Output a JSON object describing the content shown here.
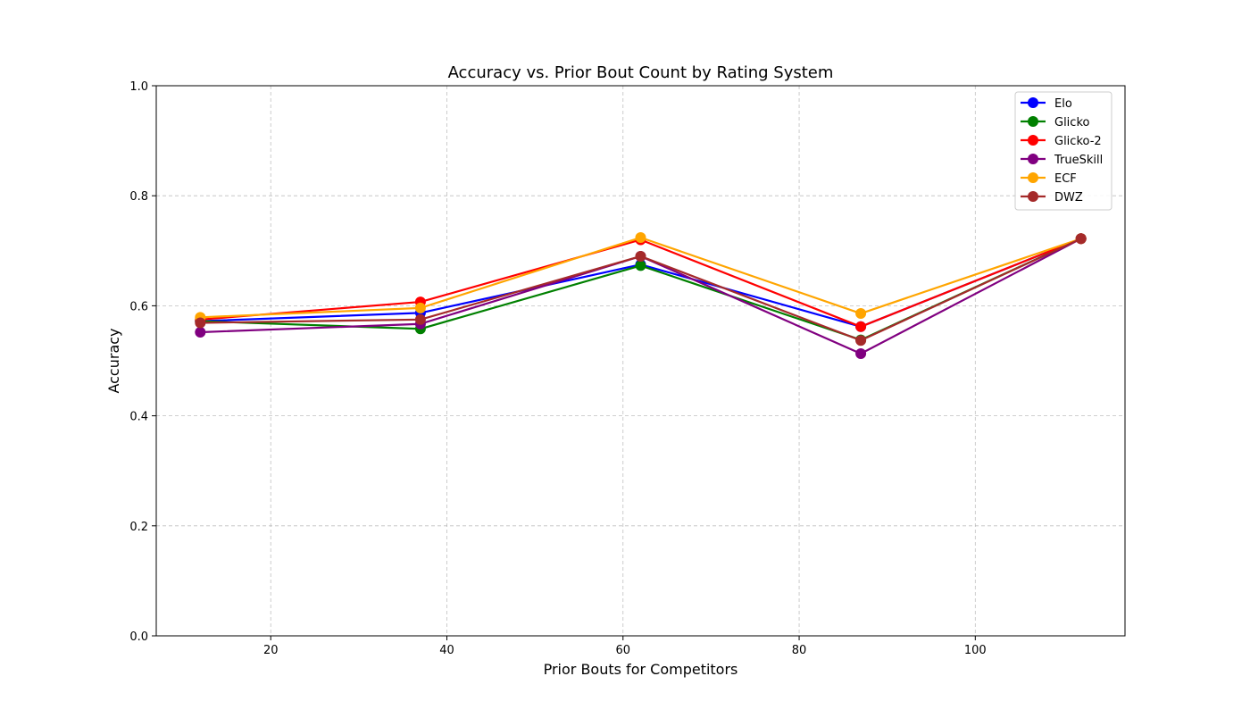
{
  "chart_data": {
    "type": "line",
    "title": "Accuracy vs. Prior Bout Count by Rating System",
    "xlabel": "Prior Bouts for Competitors",
    "ylabel": "Accuracy",
    "xlim": [
      7,
      117
    ],
    "ylim": [
      0.0,
      1.0
    ],
    "xticks": [
      20,
      40,
      60,
      80,
      100
    ],
    "yticks": [
      0.0,
      0.2,
      0.4,
      0.6,
      0.8,
      1.0
    ],
    "xtick_labels": [
      "20",
      "40",
      "60",
      "80",
      "100"
    ],
    "ytick_labels": [
      "0.0",
      "0.2",
      "0.4",
      "0.6",
      "0.8",
      "1.0"
    ],
    "grid": true,
    "legend_position": "top-right",
    "x": [
      12,
      37,
      62,
      87,
      112
    ],
    "series": [
      {
        "name": "Elo",
        "color": "#0000ff",
        "values": [
          0.572,
          0.587,
          0.675,
          0.562,
          0.722
        ]
      },
      {
        "name": "Glicko",
        "color": "#008000",
        "values": [
          0.572,
          0.558,
          0.673,
          0.538,
          0.722
        ]
      },
      {
        "name": "Glicko-2",
        "color": "#ff0000",
        "values": [
          0.575,
          0.607,
          0.72,
          0.562,
          0.722
        ]
      },
      {
        "name": "TrueSkill",
        "color": "#800080",
        "values": [
          0.552,
          0.567,
          0.69,
          0.513,
          0.722
        ]
      },
      {
        "name": "ECF",
        "color": "#ffa500",
        "values": [
          0.579,
          0.596,
          0.724,
          0.586,
          0.722
        ]
      },
      {
        "name": "DWZ",
        "color": "#a52a2a",
        "values": [
          0.569,
          0.575,
          0.69,
          0.537,
          0.722
        ]
      }
    ]
  }
}
